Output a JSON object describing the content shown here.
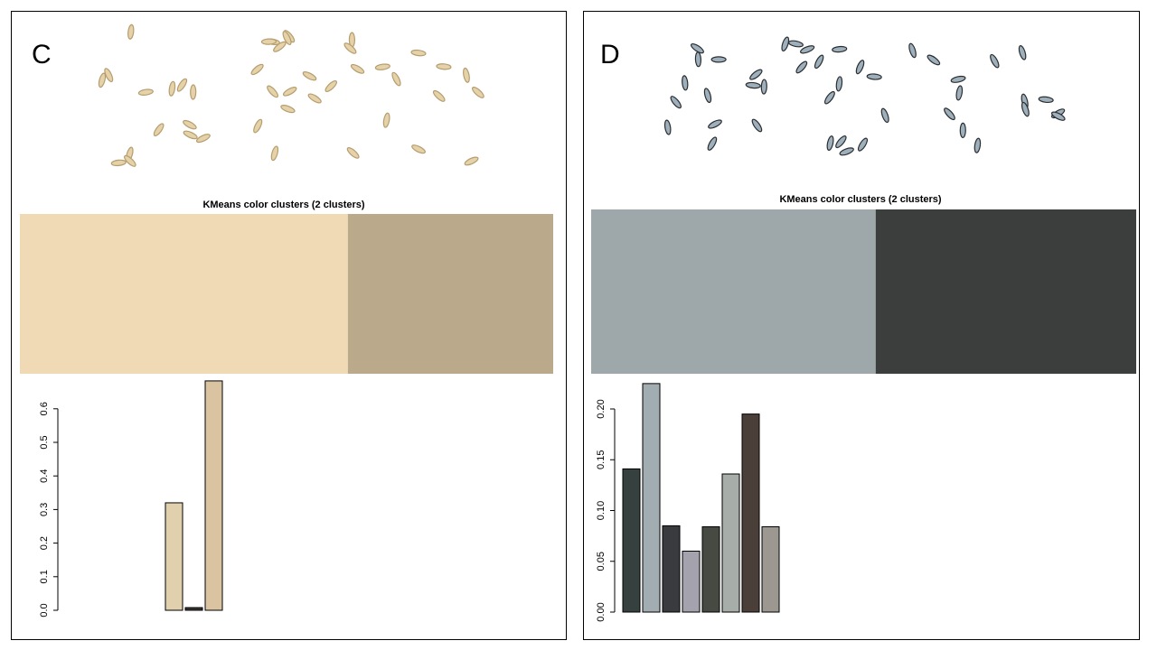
{
  "chart_data": [
    {
      "type": "bar",
      "panel": "C",
      "cluster_title": "KMeans color clusters (2 clusters)",
      "clusters": {
        "colors": [
          "#efdab5",
          "#baa98b"
        ],
        "values": [
          0.615,
          0.385
        ]
      },
      "values": [
        0,
        0,
        0,
        0,
        0,
        0.32,
        0.008,
        0.683
      ],
      "colors": [
        "#e8dcc4",
        "#e8dcc4",
        "#e8dcc4",
        "#e8dcc4",
        "#e8dcc4",
        "#e0d0ad",
        "#3a3633",
        "#d9c3a0"
      ],
      "ylim": [
        0,
        0.7
      ],
      "yticks": [
        {
          "value": 0,
          "label": "0.0"
        },
        0.1,
        0.2,
        0.3,
        0.4,
        0.5,
        0.6
      ]
    },
    {
      "type": "bar",
      "panel": "D",
      "cluster_title": "KMeans color clusters (2 clusters)",
      "clusters": {
        "colors": [
          "#9ea7a9",
          "#3c3e3d"
        ],
        "values": [
          0.522,
          0.478
        ]
      },
      "values": [
        0.141,
        0.225,
        0.085,
        0.06,
        0.084,
        0.136,
        0.195,
        0.084
      ],
      "colors": [
        "#36403f",
        "#a2adb1",
        "#393b3e",
        "#a4a3ad",
        "#464a43",
        "#a7ada9",
        "#4a3f39",
        "#9c9791"
      ],
      "ylim": [
        0,
        0.23
      ],
      "yticks": [
        {
          "value": 0,
          "label": "0.00"
        },
        0.05,
        {
          "value": 0.1,
          "label": "0.10"
        },
        0.15,
        {
          "value": 0.2,
          "label": "0.20"
        }
      ]
    }
  ]
}
